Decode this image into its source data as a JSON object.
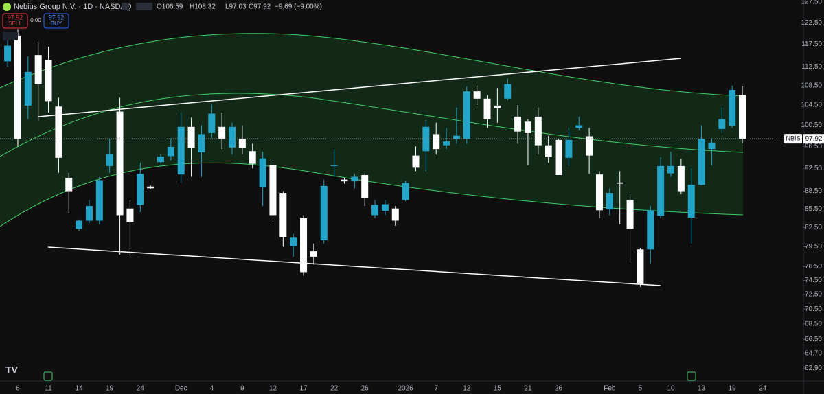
{
  "chart_data": {
    "type": "candlestick",
    "symbol": "Nebius Group N.V. · 1D · NASDAQ",
    "legend_values": [
      "O106.59",
      "H108.32",
      "L97.03",
      "C97.92",
      "−9.69 (−9.00%)"
    ],
    "trade": {
      "sell_price": "97.92",
      "sell": "SELL",
      "spread": "0.00",
      "buy_price": "97.92",
      "buy": "BUY"
    },
    "price_label": {
      "symbol": "NBIS",
      "value": "97.92"
    },
    "up_color": "#22a5c8",
    "down_color": "#ffffff",
    "log_scale": true,
    "categories": [
      null,
      "6",
      null,
      null,
      "11",
      null,
      null,
      "14",
      null,
      null,
      "19",
      null,
      null,
      "24",
      null,
      null,
      null,
      "Dec",
      null,
      null,
      "4",
      null,
      null,
      "9",
      null,
      null,
      "12",
      null,
      null,
      "17",
      null,
      null,
      "22",
      null,
      null,
      "26",
      null,
      null,
      null,
      "2026",
      null,
      null,
      "7",
      null,
      null,
      "12",
      null,
      null,
      "15",
      null,
      null,
      "21",
      null,
      null,
      "26",
      null,
      null,
      null,
      null,
      "Feb",
      null,
      null,
      "5",
      null,
      null,
      "10",
      null,
      null,
      "13",
      null,
      null,
      "19",
      null,
      null,
      "24"
    ],
    "open": [
      113.7,
      119.5,
      104.4,
      115.1,
      114.0,
      104.2,
      90.8,
      82.3,
      83.6,
      83.6,
      92.9,
      103.2,
      85.6,
      86.2,
      89.3,
      93.6,
      94.7,
      91.4,
      100.2,
      95.4,
      99.0,
      100.2,
      96.3,
      97.9,
      95.6,
      89.2,
      93.1,
      88.2,
      79.6,
      84.0,
      78.8,
      80.5,
      92.9,
      90.5,
      90.2,
      91.3,
      84.5,
      85.2,
      85.6,
      87.0,
      94.8,
      95.6,
      98.8,
      96.7,
      97.9,
      97.9,
      107.3,
      105.8,
      104.4,
      105.8,
      102.2,
      101.2,
      102.2,
      96.7,
      97.7,
      94.4,
      100.0,
      98.4,
      91.4,
      85.5,
      90.0,
      87.0,
      79.1,
      79.1,
      84.4,
      91.6,
      92.9,
      84.1,
      89.6,
      96.0,
      99.8,
      100.4,
      106.59,
      null,
      null
    ],
    "high": [
      118.5,
      121,
      114.8,
      118.1,
      117,
      106,
      91.7,
      83.8,
      87,
      91,
      97.9,
      106,
      87,
      93.5,
      89.5,
      95,
      98,
      103,
      102,
      100.5,
      104.6,
      103,
      101,
      100.5,
      97,
      95.5,
      94,
      88.5,
      81.5,
      84.5,
      80,
      90.5,
      96,
      90.8,
      91.5,
      91.6,
      87,
      87,
      86,
      90.3,
      96.5,
      101.5,
      101,
      100,
      104,
      108.3,
      108.5,
      106.5,
      108,
      110,
      104.5,
      101.7,
      104,
      98.5,
      98,
      100,
      102.2,
      100,
      92,
      89,
      92,
      88,
      79.3,
      86,
      94.5,
      95.5,
      94.2,
      92.5,
      100.5,
      98,
      104,
      108.5,
      108.32,
      null,
      null
    ],
    "low": [
      112.5,
      96.5,
      101.7,
      101.4,
      103,
      91.7,
      84.8,
      82.0,
      83.2,
      83.0,
      91.7,
      78.3,
      78.3,
      85.0,
      88.8,
      93.4,
      93.9,
      89.9,
      91,
      91,
      98,
      96,
      95,
      95,
      92.5,
      86,
      83,
      79.5,
      78,
      75.2,
      76.8,
      80,
      91,
      89.8,
      89,
      86,
      84,
      84.5,
      82.8,
      86.8,
      92,
      92,
      95,
      96,
      97,
      97,
      104.5,
      100,
      101,
      105.5,
      97,
      93,
      95,
      93.5,
      91.3,
      93,
      99.5,
      91.5,
      84,
      84.5,
      83,
      77,
      73.6,
      77,
      84,
      91,
      88,
      80,
      89.5,
      93,
      99,
      100,
      97.03,
      null,
      null
    ],
    "close": [
      117.2,
      97.9,
      111.4,
      108.8,
      105.3,
      94.4,
      88.5,
      83.6,
      86.0,
      90.4,
      95.1,
      84.5,
      83.4,
      91.5,
      89.0,
      94.6,
      96.4,
      100.2,
      96.2,
      98.8,
      102.8,
      97.9,
      100.2,
      96.2,
      93.3,
      94.3,
      84.5,
      81.0,
      80.9,
      75.7,
      78.0,
      89.4,
      93.1,
      90.2,
      91.0,
      87.4,
      86.2,
      86.3,
      83.6,
      89.9,
      92.6,
      100.2,
      96.0,
      97.4,
      98.5,
      107.3,
      105.8,
      101.7,
      103.9,
      108.8,
      99.3,
      99.0,
      96.7,
      94.5,
      91.3,
      97.7,
      100.5,
      94.8,
      85.3,
      88.2,
      89.8,
      82.3,
      74.0,
      85.3,
      92.9,
      92.9,
      88.5,
      89.6,
      97.9,
      97.2,
      101.7,
      107.6,
      97.92,
      null,
      null
    ],
    "ylim": [
      61.6,
      128
    ],
    "yticks": [
      {
        "value": 127.5,
        "label": "127.50"
      },
      {
        "value": 122.5,
        "label": "122.50"
      },
      {
        "value": 117.5,
        "label": "117.50"
      },
      {
        "value": 112.5,
        "label": "112.50"
      },
      {
        "value": 108.5,
        "label": "108.50"
      },
      {
        "value": 104.5,
        "label": "104.50"
      },
      {
        "value": 100.5,
        "label": "100.50"
      },
      {
        "value": 96.5,
        "label": "96.50"
      },
      {
        "value": 92.5,
        "label": "92.50"
      },
      {
        "value": 88.5,
        "label": "88.50"
      },
      {
        "value": 85.5,
        "label": "85.50"
      },
      {
        "value": 82.5,
        "label": "82.50"
      },
      {
        "value": 79.5,
        "label": "79.50"
      },
      {
        "value": 76.5,
        "label": "76.50"
      },
      {
        "value": 74.5,
        "label": "74.50"
      },
      {
        "value": 72.5,
        "label": "72.50"
      },
      {
        "value": 70.5,
        "label": "70.50"
      },
      {
        "value": 68.5,
        "label": "68.50"
      },
      {
        "value": 66.5,
        "label": "66.50"
      },
      {
        "value": 64.7,
        "label": "64.70"
      },
      {
        "value": 62.9,
        "label": "62.90"
      }
    ]
  }
}
